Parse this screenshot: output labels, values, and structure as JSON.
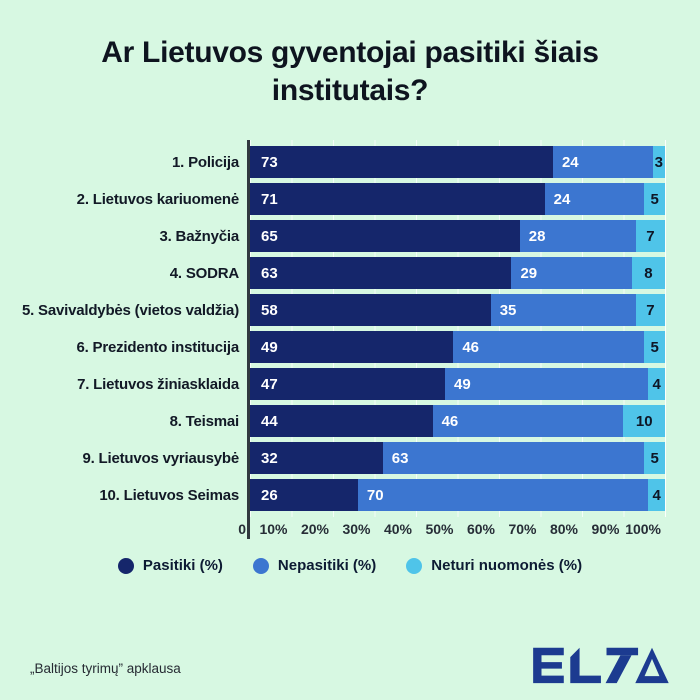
{
  "chart_data": {
    "type": "bar",
    "stacked": true,
    "orientation": "horizontal",
    "title": "Ar Lietuvos gyventojai pasitiki šiais institutais?",
    "categories": [
      "1. Policija",
      "2. Lietuvos kariuomenė",
      "3. Bažnyčia",
      "4. SODRA",
      "5. Savivaldybės (vietos valdžia)",
      "6. Prezidento institucija",
      "7. Lietuvos žiniasklaida",
      "8. Teismai",
      "9. Lietuvos vyriausybė",
      "10. Lietuvos Seimas"
    ],
    "series": [
      {
        "name": "Pasitiki (%)",
        "color": "#15266B",
        "label_color": "#FFFFFF",
        "values": [
          73,
          71,
          65,
          63,
          58,
          49,
          47,
          44,
          32,
          26
        ]
      },
      {
        "name": "Nepasitiki (%)",
        "color": "#3C76D0",
        "label_color": "#FFFFFF",
        "values": [
          24,
          24,
          28,
          29,
          35,
          46,
          49,
          46,
          63,
          70
        ]
      },
      {
        "name": "Neturi nuomonės (%)",
        "color": "#4FC4E9",
        "label_color": "#0E1626",
        "values": [
          3,
          5,
          7,
          8,
          7,
          5,
          4,
          10,
          5,
          4
        ]
      }
    ],
    "x_ticks": [
      "0",
      "10%",
      "20%",
      "30%",
      "40%",
      "50%",
      "60%",
      "70%",
      "80%",
      "90%",
      "100%"
    ],
    "xlim": [
      0,
      100
    ],
    "grid": "vertical-lines-every-10pct",
    "legend_position": "bottom",
    "value_labels": "inside-segments"
  },
  "footer": {
    "source": "„Baltijos tyrimų” apklausa",
    "logo_text": "ELTA"
  },
  "colors": {
    "background": "#D7F8E2",
    "title_text": "#0E141F",
    "label_text": "#121926",
    "tick_text": "#262D36",
    "legend_text": "#0D1B33",
    "source_text": "#262B33",
    "axis_line": "#30383E",
    "gridline": "rgba(255,255,255,0.75)",
    "logo": "#1C3B90"
  }
}
